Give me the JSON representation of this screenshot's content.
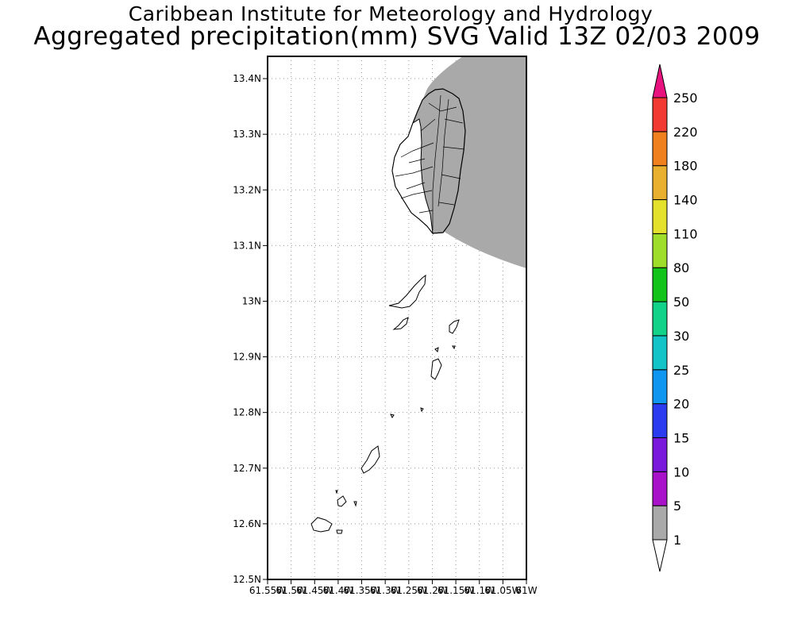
{
  "header": {
    "line1": "Caribbean Institute for Meteorology and Hydrology",
    "line2": "Aggregated precipitation(mm) SVG Valid 13Z 02/03 2009"
  },
  "map": {
    "lat_ticks": [
      "13.4N",
      "13.3N",
      "13.2N",
      "13.1N",
      "13N",
      "12.9N",
      "12.8N",
      "12.7N",
      "12.6N",
      "12.5N"
    ],
    "lon_ticks": [
      "61.55W",
      "61.5W",
      "61.45W",
      "61.4W",
      "61.35W",
      "61.3W",
      "61.25W",
      "61.2W",
      "61.15W",
      "61.1W",
      "61.05W",
      "61W"
    ],
    "lat_range": [
      12.5,
      13.44
    ],
    "lon_range": [
      -61.55,
      -61.0
    ],
    "grid": "dotted",
    "shaded_class": "1-5 mm",
    "shade_color": "#a9a9a9"
  },
  "colorbar": {
    "labels": [
      "1",
      "5",
      "10",
      "15",
      "20",
      "25",
      "30",
      "50",
      "80",
      "110",
      "140",
      "180",
      "220",
      "250"
    ],
    "colors": [
      "#a9a9a9",
      "#a812c8",
      "#7a18dc",
      "#2b3cf0",
      "#0f96f0",
      "#12c3c8",
      "#12d28a",
      "#12c31a",
      "#9ede2b",
      "#e3e12b",
      "#e8b02e",
      "#f0801e",
      "#f23a32",
      "#e8137e"
    ],
    "over_color": "#e8137e",
    "under_color": "#ffffff"
  }
}
